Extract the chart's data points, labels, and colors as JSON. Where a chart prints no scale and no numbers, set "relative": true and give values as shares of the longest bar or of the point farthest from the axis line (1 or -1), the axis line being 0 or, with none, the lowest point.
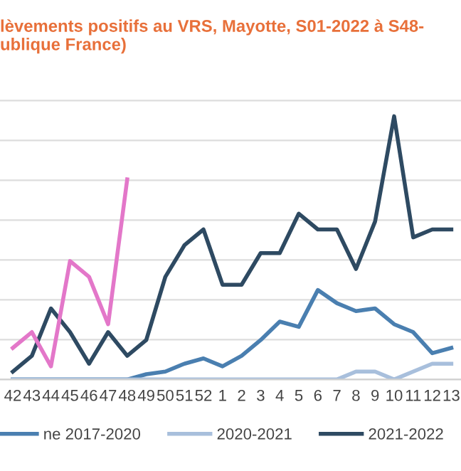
{
  "chart_data": {
    "type": "line",
    "title": "lèvements positifs au VRS, Mayotte, S01-2022 à S48-\nublique France)",
    "categories": [
      "42",
      "43",
      "44",
      "45",
      "46",
      "47",
      "48",
      "49",
      "50",
      "51",
      "52",
      "1",
      "2",
      "3",
      "4",
      "5",
      "6",
      "7",
      "8",
      "9",
      "10",
      "11",
      "12",
      "13"
    ],
    "relative": true,
    "grid": "y",
    "tick_labels": "x",
    "legend": "bottom",
    "marker": "none",
    "line_style": "solid",
    "series": [
      {
        "name": "ne 2017-2020",
        "color": "#4a7fb0",
        "values": [
          0,
          0,
          0,
          0,
          0,
          0,
          0,
          0.02,
          0.03,
          0.06,
          0.08,
          0.05,
          0.09,
          0.15,
          0.22,
          0.2,
          0.34,
          0.29,
          0.26,
          0.27,
          0.21,
          0.18,
          0.1,
          0.12
        ]
      },
      {
        "name": "2020-2021",
        "color": "#a8bfdc",
        "values": [
          0,
          0,
          0,
          0,
          0,
          0,
          0,
          0,
          0,
          0,
          0,
          0,
          0,
          0,
          0,
          0,
          0,
          0,
          0.03,
          0.03,
          0,
          0.03,
          0.06,
          0.06
        ]
      },
      {
        "name": "2021-2022",
        "color": "#2e4a62",
        "values": [
          0.03,
          0.09,
          0.27,
          0.18,
          0.06,
          0.18,
          0.09,
          0.15,
          0.39,
          0.51,
          0.57,
          0.36,
          0.36,
          0.48,
          0.48,
          0.63,
          0.57,
          0.57,
          0.42,
          0.6,
          1,
          0.54,
          0.57,
          0.57
        ]
      },
      {
        "color": "#e377c9",
        "values": [
          0.12,
          0.18,
          0.05,
          0.45,
          0.39,
          0.21,
          0.76,
          null,
          null,
          null,
          null,
          null,
          null,
          null,
          null,
          null,
          null,
          null,
          null,
          null,
          null,
          null,
          null,
          null
        ]
      }
    ]
  }
}
